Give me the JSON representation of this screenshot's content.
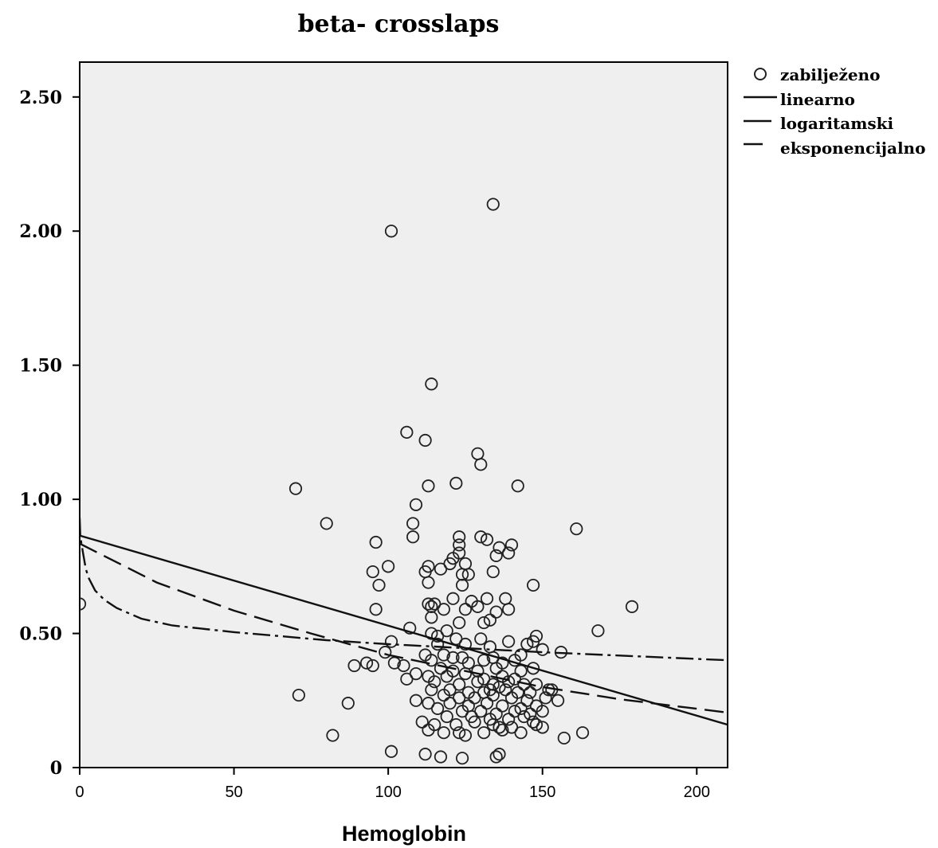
{
  "chart_data": {
    "type": "scatter",
    "title": "beta- crosslaps",
    "xlabel": "Hemoglobin",
    "ylabel": "",
    "xlim": [
      0,
      210
    ],
    "ylim": [
      0,
      2.63
    ],
    "x_ticks": [
      {
        "value": 0,
        "label": "0"
      },
      {
        "value": 50,
        "label": "50"
      },
      {
        "value": 100,
        "label": "100"
      },
      {
        "value": 150,
        "label": "150"
      },
      {
        "value": 200,
        "label": "200"
      }
    ],
    "y_ticks": [
      {
        "value": 0,
        "label": "0"
      },
      {
        "value": 0.5,
        "label": "0.50"
      },
      {
        "value": 1.0,
        "label": "1.00"
      },
      {
        "value": 1.5,
        "label": "1.50"
      },
      {
        "value": 2.0,
        "label": "2.00"
      },
      {
        "value": 2.5,
        "label": "2.50"
      }
    ],
    "grid": false,
    "legend_position": "top-right",
    "legend": [
      {
        "label": "zabilježeno",
        "marker": "circle"
      },
      {
        "label": "linearno",
        "marker": "solid-line"
      },
      {
        "label": "logaritamski",
        "marker": "dash-dot-line"
      },
      {
        "label": "eksponencijalno",
        "marker": "dashed-line"
      }
    ],
    "observed": {
      "name": "zabilježeno",
      "points": [
        [
          134,
          2.1
        ],
        [
          101,
          2.0
        ],
        [
          114,
          1.43
        ],
        [
          106,
          1.25
        ],
        [
          112,
          1.22
        ],
        [
          129,
          1.17
        ],
        [
          130,
          1.13
        ],
        [
          70,
          1.04
        ],
        [
          113,
          1.05
        ],
        [
          122,
          1.06
        ],
        [
          142,
          1.05
        ],
        [
          109,
          0.98
        ],
        [
          80,
          0.91
        ],
        [
          108,
          0.91
        ],
        [
          161,
          0.89
        ],
        [
          108,
          0.86
        ],
        [
          123,
          0.86
        ],
        [
          130,
          0.86
        ],
        [
          132,
          0.85
        ],
        [
          96,
          0.84
        ],
        [
          123,
          0.83
        ],
        [
          140,
          0.83
        ],
        [
          136,
          0.82
        ],
        [
          123,
          0.8
        ],
        [
          139,
          0.8
        ],
        [
          135,
          0.79
        ],
        [
          121,
          0.78
        ],
        [
          120,
          0.76
        ],
        [
          100,
          0.75
        ],
        [
          113,
          0.75
        ],
        [
          117,
          0.74
        ],
        [
          125,
          0.76
        ],
        [
          95,
          0.73
        ],
        [
          112,
          0.73
        ],
        [
          124,
          0.72
        ],
        [
          126,
          0.72
        ],
        [
          134,
          0.73
        ],
        [
          97,
          0.68
        ],
        [
          113,
          0.69
        ],
        [
          124,
          0.68
        ],
        [
          147,
          0.68
        ],
        [
          121,
          0.63
        ],
        [
          127,
          0.62
        ],
        [
          132,
          0.63
        ],
        [
          138,
          0.63
        ],
        [
          113,
          0.61
        ],
        [
          115,
          0.61
        ],
        [
          114,
          0.6
        ],
        [
          118,
          0.59
        ],
        [
          125,
          0.59
        ],
        [
          129,
          0.6
        ],
        [
          135,
          0.58
        ],
        [
          139,
          0.59
        ],
        [
          179,
          0.6
        ],
        [
          96,
          0.59
        ],
        [
          114,
          0.56
        ],
        [
          123,
          0.54
        ],
        [
          131,
          0.54
        ],
        [
          133,
          0.55
        ],
        [
          107,
          0.52
        ],
        [
          114,
          0.5
        ],
        [
          116,
          0.49
        ],
        [
          119,
          0.51
        ],
        [
          122,
          0.48
        ],
        [
          130,
          0.48
        ],
        [
          168,
          0.51
        ],
        [
          101,
          0.47
        ],
        [
          116,
          0.46
        ],
        [
          125,
          0.46
        ],
        [
          133,
          0.45
        ],
        [
          139,
          0.47
        ],
        [
          145,
          0.46
        ],
        [
          147,
          0.47
        ],
        [
          148,
          0.49
        ],
        [
          150,
          0.44
        ],
        [
          156,
          0.43
        ],
        [
          99,
          0.43
        ],
        [
          112,
          0.42
        ],
        [
          118,
          0.42
        ],
        [
          124,
          0.41
        ],
        [
          134,
          0.41
        ],
        [
          143,
          0.42
        ],
        [
          114,
          0.4
        ],
        [
          121,
          0.41
        ],
        [
          126,
          0.39
        ],
        [
          131,
          0.4
        ],
        [
          137,
          0.39
        ],
        [
          141,
          0.4
        ],
        [
          102,
          0.39
        ],
        [
          105,
          0.38
        ],
        [
          93,
          0.39
        ],
        [
          95,
          0.38
        ],
        [
          89,
          0.38
        ],
        [
          117,
          0.37
        ],
        [
          121,
          0.36
        ],
        [
          129,
          0.36
        ],
        [
          135,
          0.37
        ],
        [
          143,
          0.36
        ],
        [
          147,
          0.37
        ],
        [
          109,
          0.35
        ],
        [
          113,
          0.34
        ],
        [
          119,
          0.34
        ],
        [
          125,
          0.35
        ],
        [
          131,
          0.33
        ],
        [
          137,
          0.34
        ],
        [
          141,
          0.33
        ],
        [
          106,
          0.33
        ],
        [
          115,
          0.32
        ],
        [
          123,
          0.31
        ],
        [
          129,
          0.32
        ],
        [
          134,
          0.31
        ],
        [
          139,
          0.32
        ],
        [
          144,
          0.31
        ],
        [
          148,
          0.31
        ],
        [
          152,
          0.29
        ],
        [
          114,
          0.29
        ],
        [
          120,
          0.29
        ],
        [
          126,
          0.28
        ],
        [
          131,
          0.28
        ],
        [
          133,
          0.29
        ],
        [
          136,
          0.3
        ],
        [
          138,
          0.29
        ],
        [
          142,
          0.28
        ],
        [
          146,
          0.28
        ],
        [
          153,
          0.29
        ],
        [
          118,
          0.27
        ],
        [
          123,
          0.26
        ],
        [
          128,
          0.26
        ],
        [
          134,
          0.27
        ],
        [
          140,
          0.26
        ],
        [
          145,
          0.25
        ],
        [
          151,
          0.26
        ],
        [
          155,
          0.25
        ],
        [
          71,
          0.27
        ],
        [
          109,
          0.25
        ],
        [
          113,
          0.24
        ],
        [
          120,
          0.24
        ],
        [
          126,
          0.23
        ],
        [
          132,
          0.24
        ],
        [
          137,
          0.23
        ],
        [
          143,
          0.22
        ],
        [
          148,
          0.23
        ],
        [
          87,
          0.24
        ],
        [
          116,
          0.22
        ],
        [
          124,
          0.21
        ],
        [
          130,
          0.21
        ],
        [
          135,
          0.2
        ],
        [
          141,
          0.21
        ],
        [
          146,
          0.2
        ],
        [
          150,
          0.21
        ],
        [
          119,
          0.19
        ],
        [
          127,
          0.19
        ],
        [
          133,
          0.18
        ],
        [
          139,
          0.18
        ],
        [
          144,
          0.19
        ],
        [
          147,
          0.17
        ],
        [
          111,
          0.17
        ],
        [
          115,
          0.16
        ],
        [
          122,
          0.16
        ],
        [
          128,
          0.17
        ],
        [
          134,
          0.16
        ],
        [
          136,
          0.15
        ],
        [
          140,
          0.15
        ],
        [
          148,
          0.16
        ],
        [
          150,
          0.15
        ],
        [
          113,
          0.14
        ],
        [
          118,
          0.13
        ],
        [
          123,
          0.13
        ],
        [
          125,
          0.12
        ],
        [
          131,
          0.13
        ],
        [
          137,
          0.14
        ],
        [
          143,
          0.13
        ],
        [
          157,
          0.11
        ],
        [
          163,
          0.13
        ],
        [
          82,
          0.12
        ],
        [
          101,
          0.06
        ],
        [
          112,
          0.05
        ],
        [
          117,
          0.04
        ],
        [
          124,
          0.035
        ],
        [
          135,
          0.04
        ],
        [
          136,
          0.05
        ],
        [
          0,
          0.61
        ]
      ]
    },
    "fits": [
      {
        "name": "linearno",
        "style": "solid",
        "x": [
          0,
          210
        ],
        "y": [
          0.865,
          0.16
        ]
      },
      {
        "name": "logaritamski",
        "style": "dash-dot",
        "x": [
          0,
          0.2,
          1,
          2,
          3,
          5,
          8,
          12,
          20,
          30,
          50,
          80,
          100,
          150,
          210
        ],
        "y": [
          0.93,
          0.86,
          0.805,
          0.74,
          0.705,
          0.66,
          0.625,
          0.595,
          0.555,
          0.53,
          0.505,
          0.475,
          0.46,
          0.43,
          0.4
        ]
      },
      {
        "name": "eksponencijalno",
        "style": "dashed",
        "x": [
          0,
          25,
          50,
          75,
          100,
          125,
          150,
          175,
          210
        ],
        "y": [
          0.835,
          0.69,
          0.585,
          0.5,
          0.42,
          0.36,
          0.3,
          0.255,
          0.205
        ]
      }
    ]
  }
}
